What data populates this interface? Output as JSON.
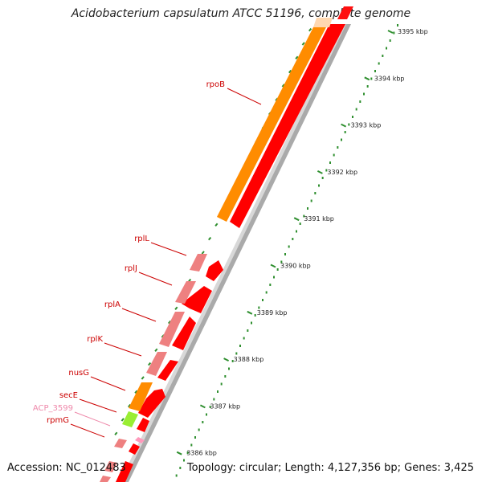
{
  "title": "Acidobacterium capsulatum ATCC 51196, complete genome",
  "footer": {
    "accession": "Accession: NC_012483",
    "summary": "Topology: circular; Length: 4,127,356 bp; Genes: 3,425"
  },
  "colors": {
    "gene_label": "#cc0000",
    "acp_label": "#ee88aa",
    "cds_forward": "#ff0000",
    "cds_reverse_orange": "#ff8c00",
    "cds_pink": "#ee8080",
    "cds_green": "#99ee33",
    "backbone": "#999999",
    "tick_green": "#2f8f2f"
  },
  "scale": {
    "unit": "kbp",
    "ticks": [
      "3395 kbp",
      "3394 kbp",
      "3393 kbp",
      "3392 kbp",
      "3391 kbp",
      "3390 kbp",
      "3389 kbp",
      "3388 kbp",
      "3387 kbp",
      "3386 kbp"
    ]
  },
  "genes": [
    {
      "name": "rpoB",
      "color": "#cc0000"
    },
    {
      "name": "rplL",
      "color": "#cc0000"
    },
    {
      "name": "rplJ",
      "color": "#cc0000"
    },
    {
      "name": "rplA",
      "color": "#cc0000"
    },
    {
      "name": "rplK",
      "color": "#cc0000"
    },
    {
      "name": "nusG",
      "color": "#cc0000"
    },
    {
      "name": "secE",
      "color": "#cc0000"
    },
    {
      "name": "ACP_3599",
      "color": "#ee88aa"
    },
    {
      "name": "rpmG",
      "color": "#cc0000"
    }
  ]
}
